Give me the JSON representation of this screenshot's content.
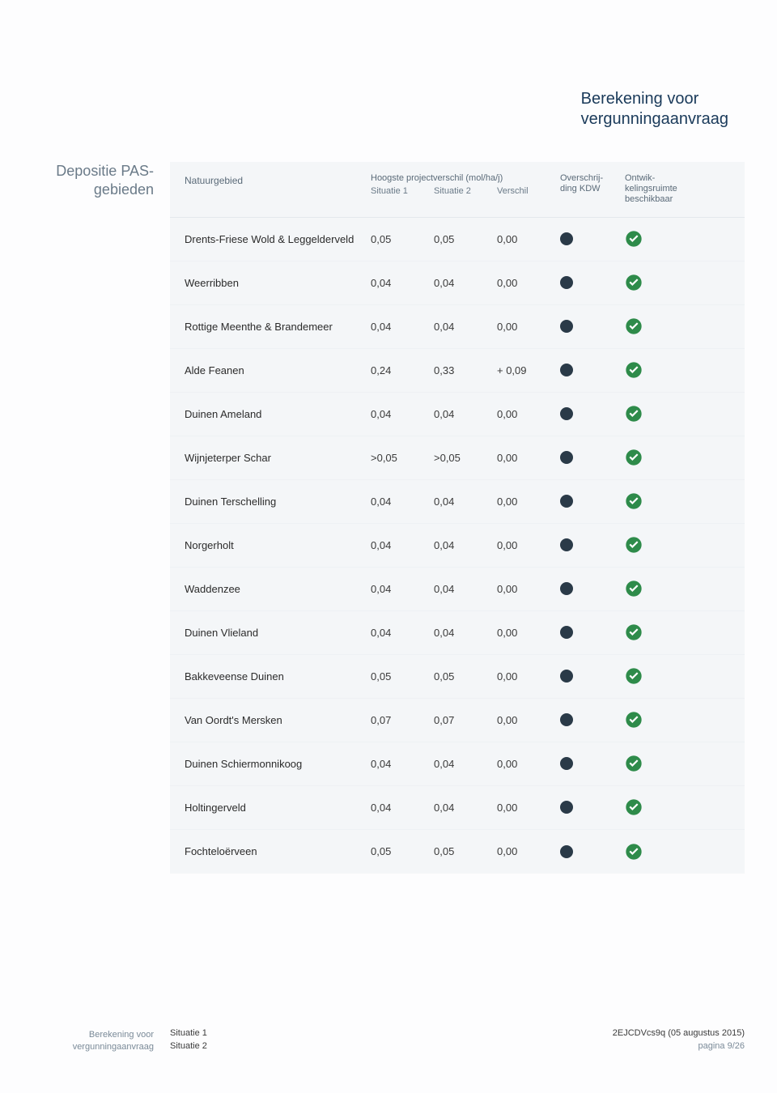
{
  "colors": {
    "page_bg": "#fdfdfe",
    "panel_bg": "#f4f6f8",
    "title_color": "#1a3a5a",
    "side_label_color": "#6a7a88",
    "header_text": "#5a6a78",
    "row_text": "#2b2b2b",
    "dot_color": "#2a3a48",
    "check_color": "#2e8b4a",
    "row_border": "#eef1f4"
  },
  "title": {
    "line1": "Berekening voor",
    "line2": "vergunningaanvraag"
  },
  "side_label": {
    "line1": "Depositie PAS-",
    "line2": "gebieden"
  },
  "table": {
    "headers": {
      "name": "Natuurgebied",
      "group_title": "Hoogste projectverschil (mol/ha/j)",
      "sit1": "Situatie 1",
      "sit2": "Situatie 2",
      "diff": "Verschil",
      "kdw_l1": "Overschrij-",
      "kdw_l2": "ding KDW",
      "ont_l1": "Ontwik-",
      "ont_l2": "kelingsruimte",
      "ont_l3": "beschikbaar"
    },
    "rows": [
      {
        "name": "Drents-Friese Wold & Leggelderveld",
        "s1": "0,05",
        "s2": "0,05",
        "d": "0,00",
        "kdw": true,
        "ont": true
      },
      {
        "name": "Weerribben",
        "s1": "0,04",
        "s2": "0,04",
        "d": "0,00",
        "kdw": true,
        "ont": true
      },
      {
        "name": "Rottige Meenthe & Brandemeer",
        "s1": "0,04",
        "s2": "0,04",
        "d": "0,00",
        "kdw": true,
        "ont": true
      },
      {
        "name": "Alde Feanen",
        "s1": "0,24",
        "s2": "0,33",
        "d": "+ 0,09",
        "kdw": true,
        "ont": true
      },
      {
        "name": "Duinen Ameland",
        "s1": "0,04",
        "s2": "0,04",
        "d": "0,00",
        "kdw": true,
        "ont": true
      },
      {
        "name": "Wijnjeterper Schar",
        "s1": ">0,05",
        "s2": ">0,05",
        "d": "0,00",
        "kdw": true,
        "ont": true
      },
      {
        "name": "Duinen Terschelling",
        "s1": "0,04",
        "s2": "0,04",
        "d": "0,00",
        "kdw": true,
        "ont": true
      },
      {
        "name": "Norgerholt",
        "s1": "0,04",
        "s2": "0,04",
        "d": "0,00",
        "kdw": true,
        "ont": true
      },
      {
        "name": "Waddenzee",
        "s1": "0,04",
        "s2": "0,04",
        "d": "0,00",
        "kdw": true,
        "ont": true
      },
      {
        "name": "Duinen Vlieland",
        "s1": "0,04",
        "s2": "0,04",
        "d": "0,00",
        "kdw": true,
        "ont": true
      },
      {
        "name": "Bakkeveense Duinen",
        "s1": "0,05",
        "s2": "0,05",
        "d": "0,00",
        "kdw": true,
        "ont": true
      },
      {
        "name": "Van Oordt's Mersken",
        "s1": "0,07",
        "s2": "0,07",
        "d": "0,00",
        "kdw": true,
        "ont": true
      },
      {
        "name": "Duinen Schiermonnikoog",
        "s1": "0,04",
        "s2": "0,04",
        "d": "0,00",
        "kdw": true,
        "ont": true
      },
      {
        "name": "Holtingerveld",
        "s1": "0,04",
        "s2": "0,04",
        "d": "0,00",
        "kdw": true,
        "ont": true
      },
      {
        "name": "Fochteloërveen",
        "s1": "0,05",
        "s2": "0,05",
        "d": "0,00",
        "kdw": true,
        "ont": true
      }
    ]
  },
  "footer": {
    "left_l1": "Berekening voor",
    "left_l2": "vergunningaanvraag",
    "mid_l1": "Situatie 1",
    "mid_l2": "Situatie 2",
    "ref": "2EJCDVcs9q (05 augustus 2015)",
    "page": "pagina 9/26"
  }
}
